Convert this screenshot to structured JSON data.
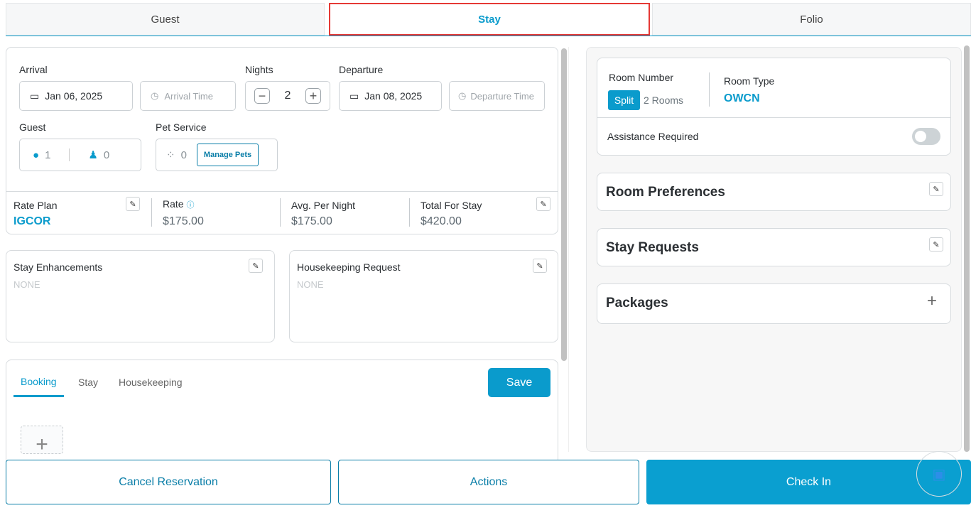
{
  "tabs": [
    {
      "label": "Guest"
    },
    {
      "label": "Stay"
    },
    {
      "label": "Folio"
    }
  ],
  "stay": {
    "arrival_label": "Arrival",
    "arrival_date": "Jan 06, 2025",
    "arrival_time_placeholder": "Arrival Time",
    "nights_label": "Nights",
    "nights": "2",
    "departure_label": "Departure",
    "departure_date": "Jan 08, 2025",
    "departure_time_placeholder": "Departure Time",
    "guest_label": "Guest",
    "adults": "1",
    "children": "0",
    "pet_label": "Pet Service",
    "pets": "0",
    "manage_pets": "Manage Pets"
  },
  "rate": {
    "plan_label": "Rate Plan",
    "plan": "IGCOR",
    "rate_label": "Rate",
    "rate": "$175.00",
    "avg_label": "Avg. Per Night",
    "avg": "$175.00",
    "total_label": "Total For Stay",
    "total": "$420.00"
  },
  "enhancements": {
    "label": "Stay Enhancements",
    "value": "NONE"
  },
  "housekeeping": {
    "label": "Housekeeping Request",
    "value": "NONE"
  },
  "notes": {
    "tabs": [
      "Booking",
      "Stay",
      "Housekeeping"
    ],
    "save": "Save"
  },
  "room": {
    "number_label": "Room Number",
    "split": "Split",
    "rooms": "2 Rooms",
    "type_label": "Room Type",
    "type": "OWCN",
    "assistance_label": "Assistance Required",
    "assistance": false
  },
  "sections": [
    "Room Preferences",
    "Stay Requests",
    "Packages"
  ],
  "footer": {
    "cancel": "Cancel Reservation",
    "actions": "Actions",
    "checkin": "Check In"
  },
  "colors": {
    "accent": "#0a9bcc",
    "highlight": "#e53935"
  }
}
